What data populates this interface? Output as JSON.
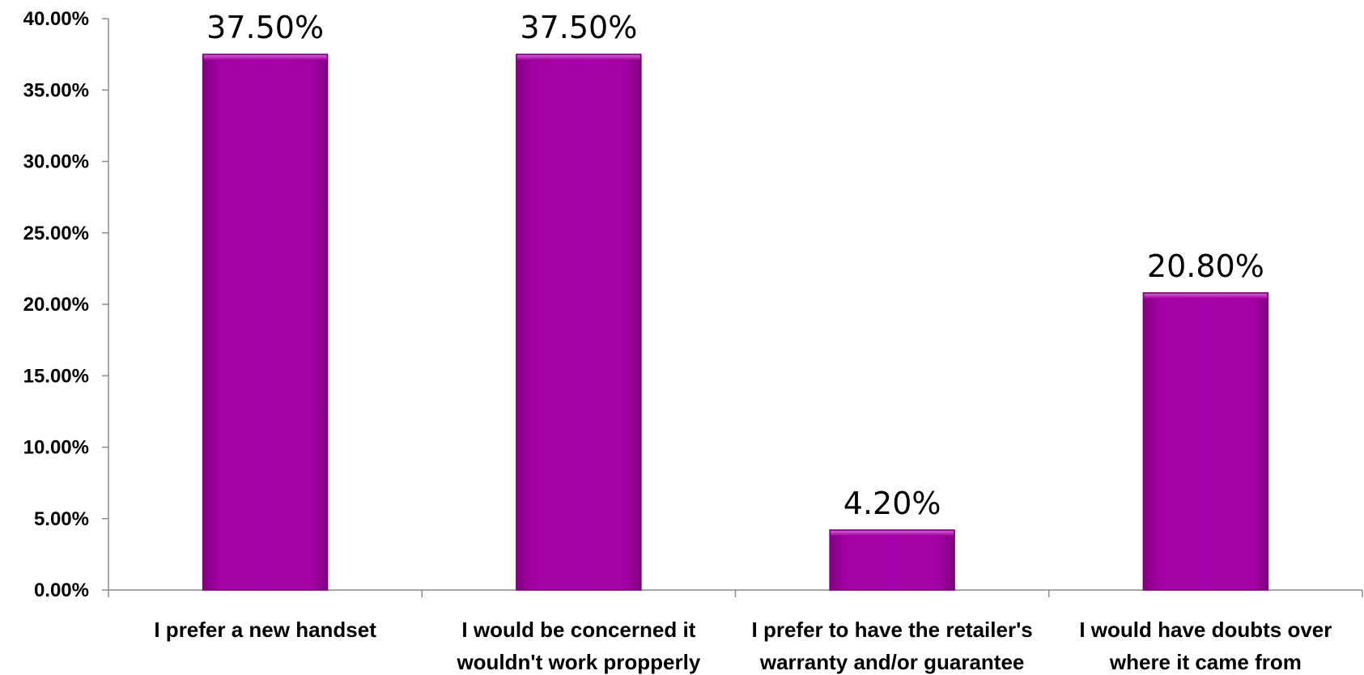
{
  "chart_data": {
    "type": "bar",
    "categories": [
      [
        "I prefer a new handset"
      ],
      [
        "I would be concerned it",
        "wouldn't work propperly"
      ],
      [
        "I prefer to have the retailer's",
        "warranty and/or guarantee"
      ],
      [
        "I would have doubts over",
        "where it came from"
      ]
    ],
    "values": [
      37.5,
      37.5,
      4.2,
      20.8
    ],
    "data_labels": [
      "37.50%",
      "37.50%",
      "4.20%",
      "20.80%"
    ],
    "ylim": [
      0,
      40
    ],
    "yticks": [
      0,
      5,
      10,
      15,
      20,
      25,
      30,
      35,
      40
    ],
    "ytick_labels": [
      "0.00%",
      "5.00%",
      "10.00%",
      "15.00%",
      "20.00%",
      "25.00%",
      "30.00%",
      "35.00%",
      "40.00%"
    ],
    "title": "",
    "xlabel": "",
    "ylabel": "",
    "grid": false,
    "legend": "none",
    "bar_color": "#a000a0",
    "bar_edge_color": "#7a0078"
  }
}
